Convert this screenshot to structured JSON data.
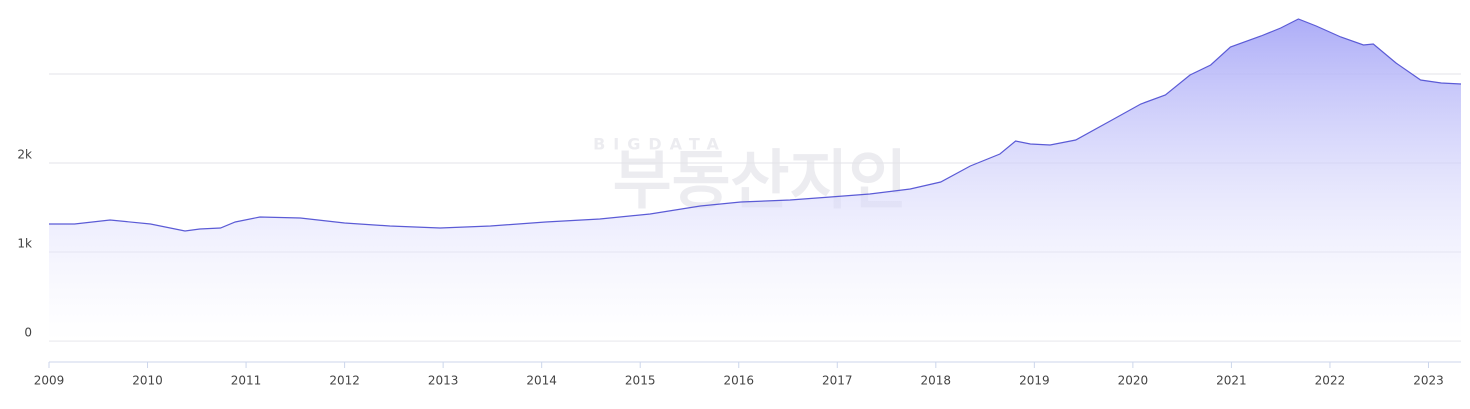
{
  "watermark": {
    "top": "BIGDATA",
    "main": "부동산지인"
  },
  "chart_data": {
    "type": "area",
    "color": "#5b5bd6",
    "fill_top": "#a9a9f7",
    "grid": true,
    "x": [
      2009,
      2009.26,
      2009.62,
      2010.03,
      2010.38,
      2010.53,
      2010.74,
      2010.89,
      2011.14,
      2011.55,
      2012.0,
      2012.46,
      2012.97,
      2013.48,
      2014.04,
      2014.59,
      2015.1,
      2015.61,
      2016.02,
      2016.52,
      2016.93,
      2017.33,
      2017.74,
      2018.05,
      2018.35,
      2018.65,
      2018.81,
      2018.96,
      2019.16,
      2019.42,
      2019.77,
      2020.08,
      2020.33,
      2020.58,
      2020.79,
      2020.99,
      2021.3,
      2021.5,
      2021.68,
      2021.86,
      2022.11,
      2022.34,
      2022.44,
      2022.67,
      2022.92,
      2023.13,
      2023.33
    ],
    "values": [
      1315,
      1315,
      1360,
      1315,
      1236,
      1258,
      1270,
      1337,
      1393,
      1382,
      1326,
      1292,
      1270,
      1292,
      1337,
      1371,
      1427,
      1517,
      1562,
      1584,
      1618,
      1652,
      1708,
      1787,
      1966,
      2101,
      2247,
      2213,
      2202,
      2258,
      2472,
      2663,
      2764,
      2989,
      3101,
      3303,
      3427,
      3517,
      3618,
      3539,
      3416,
      3326,
      3337,
      3124,
      2933,
      2899,
      2888
    ],
    "xlim": [
      2009,
      2023.33
    ],
    "xticks": [
      2009,
      2010,
      2011,
      2012,
      2013,
      2014,
      2015,
      2016,
      2017,
      2018,
      2019,
      2020,
      2021,
      2022,
      2023
    ],
    "ylim": [
      0,
      3700
    ],
    "yticks": [
      0,
      {
        "value": 1000,
        "label": "1k"
      },
      {
        "value": 2000,
        "label": "2k"
      },
      {
        "value": 3000,
        "label": null
      }
    ]
  }
}
